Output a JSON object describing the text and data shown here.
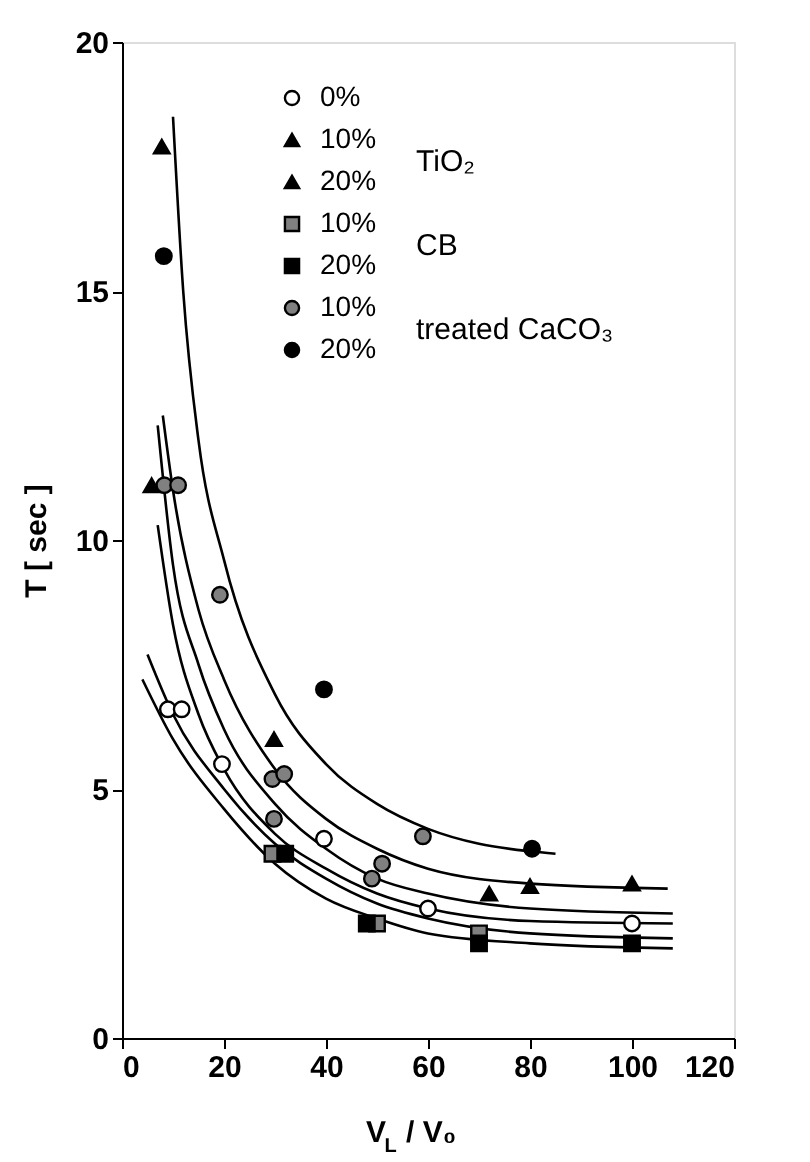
{
  "chart_data": {
    "type": "scatter",
    "xlabel": "V$_{L}$ / V₀",
    "ylabel": "T [ sec ]",
    "xlim": [
      0,
      120
    ],
    "ylim": [
      0,
      20
    ],
    "xticks": [
      0,
      20,
      40,
      60,
      80,
      100,
      120
    ],
    "yticks": [
      0,
      5,
      10,
      15,
      20
    ],
    "grid": false,
    "legend": "top",
    "annotations": [
      "TiO₂",
      "CB",
      "treated CaCO₃"
    ],
    "series": [
      {
        "name": "0%",
        "type": "scatter",
        "marker": "circle",
        "color": "#ffffff",
        "x": [
          9,
          11.7,
          19.6,
          39.6,
          60,
          100
        ],
        "values": [
          6.6,
          6.6,
          5.5,
          4.0,
          2.6,
          2.3
        ]
      },
      {
        "name": "10%",
        "type": "scatter",
        "marker": "triangle",
        "color": "#000000",
        "x": [
          5.8,
          29.8,
          72
        ],
        "values": [
          11.1,
          6.0,
          2.9
        ]
      },
      {
        "name": "20%",
        "type": "scatter",
        "marker": "triangle",
        "color": "#000000",
        "x": [
          7.8,
          80,
          100
        ],
        "values": [
          17.9,
          3.05,
          3.1
        ]
      },
      {
        "name": "10%",
        "type": "scatter",
        "marker": "square",
        "color": "#808080",
        "x": [
          29.5,
          50,
          70
        ],
        "values": [
          3.7,
          2.3,
          2.1
        ]
      },
      {
        "name": "20%",
        "type": "scatter",
        "marker": "square",
        "color": "#000000",
        "x": [
          32,
          48,
          70,
          100
        ],
        "values": [
          3.7,
          2.3,
          1.9,
          1.9
        ]
      },
      {
        "name": "10%",
        "type": "scatter",
        "marker": "circle",
        "color": "#808080",
        "x": [
          8.3,
          11,
          19.2,
          29.5,
          31.8,
          29.8,
          49,
          51,
          59
        ],
        "values": [
          11.1,
          11.1,
          8.9,
          5.2,
          5.3,
          4.4,
          3.2,
          3.5,
          4.05
        ]
      },
      {
        "name": "20%",
        "type": "scatter",
        "marker": "circle",
        "color": "#000000",
        "x": [
          8.2,
          39.6,
          80.4
        ],
        "values": [
          15.7,
          7.0,
          3.8
        ]
      },
      {
        "type": "line",
        "color": "#000000",
        "x": [
          10,
          12,
          15,
          20,
          30,
          40,
          50,
          60,
          70,
          80,
          85
        ],
        "values": [
          18.5,
          15,
          12,
          9.6,
          6.9,
          5.5,
          4.7,
          4.2,
          3.9,
          3.75,
          3.7
        ]
      },
      {
        "type": "line",
        "color": "#000000",
        "x": [
          8,
          10,
          15,
          20,
          30,
          40,
          50,
          60,
          80,
          107
        ],
        "values": [
          12.5,
          11,
          8.6,
          7.2,
          5.4,
          4.4,
          3.8,
          3.4,
          3.1,
          3.0
        ]
      },
      {
        "type": "line",
        "color": "#000000",
        "x": [
          7,
          10,
          15,
          20,
          30,
          40,
          50,
          60,
          80,
          108
        ],
        "values": [
          12.3,
          9.5,
          7.5,
          6.2,
          4.7,
          3.8,
          3.2,
          2.9,
          2.6,
          2.5
        ]
      },
      {
        "type": "line",
        "color": "#000000",
        "x": [
          7,
          10,
          15,
          20,
          30,
          40,
          50,
          60,
          80,
          108
        ],
        "values": [
          10.3,
          8.3,
          6.5,
          5.4,
          4.1,
          3.4,
          2.9,
          2.6,
          2.35,
          2.3
        ]
      },
      {
        "type": "line",
        "color": "#000000",
        "x": [
          5,
          10,
          20,
          30,
          40,
          50,
          60,
          80,
          108
        ],
        "values": [
          7.7,
          6.5,
          5.0,
          3.9,
          3.2,
          2.7,
          2.4,
          2.1,
          2.0
        ]
      },
      {
        "type": "line",
        "color": "#000000",
        "x": [
          4,
          10,
          20,
          30,
          40,
          50,
          60,
          80,
          108
        ],
        "values": [
          7.2,
          6.0,
          4.6,
          3.5,
          2.8,
          2.4,
          2.1,
          1.9,
          1.8
        ]
      }
    ]
  }
}
